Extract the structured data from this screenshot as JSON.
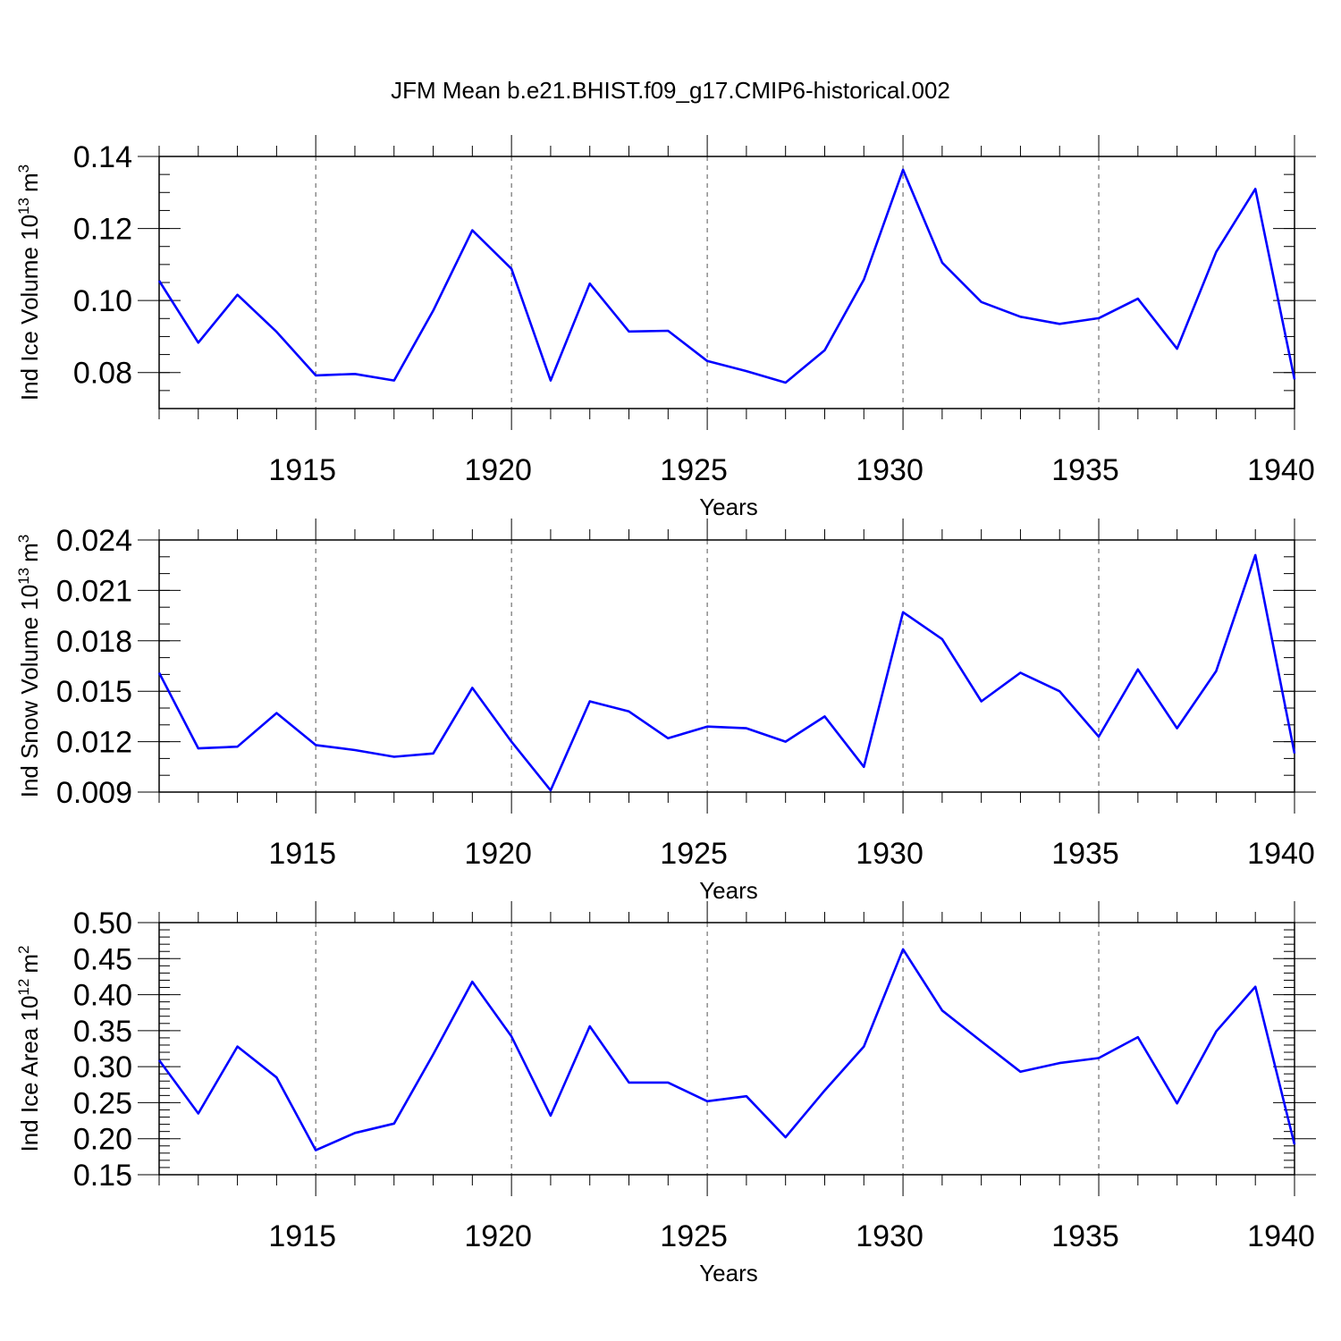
{
  "chart_data": {
    "type": "line",
    "title": "JFM Mean b.e21.BHIST.f09_g17.CMIP6-historical.002",
    "series_color": "#0000ff",
    "panels": [
      {
        "id": "ice-volume",
        "ylabel_main": "Ind Ice Volume 10",
        "ylabel_exp": "13",
        "ylabel_unit": "m",
        "ylabel_unit_exp": "3",
        "xlabel": "Years",
        "xlim": [
          1911,
          1940
        ],
        "ylim": [
          0.07,
          0.14
        ],
        "yticks": [
          0.08,
          0.1,
          0.12,
          0.14
        ],
        "ytick_labels": [
          "0.08",
          "0.10",
          "0.12",
          "0.14"
        ],
        "yminor_step": 0.005,
        "xticks": [
          1915,
          1920,
          1925,
          1930,
          1935,
          1940
        ],
        "xtick_labels": [
          "1915",
          "1920",
          "1925",
          "1930",
          "1935",
          "1940"
        ],
        "x": [
          1911,
          1912,
          1913,
          1914,
          1915,
          1916,
          1917,
          1918,
          1919,
          1920,
          1921,
          1922,
          1923,
          1924,
          1925,
          1926,
          1927,
          1928,
          1929,
          1930,
          1931,
          1932,
          1933,
          1934,
          1935,
          1936,
          1937,
          1938,
          1939,
          1940
        ],
        "values": [
          0.1055,
          0.0883,
          0.1016,
          0.0913,
          0.0792,
          0.0796,
          0.0778,
          0.0972,
          0.1195,
          0.1088,
          0.0778,
          0.1047,
          0.0914,
          0.0916,
          0.0832,
          0.0804,
          0.0772,
          0.0862,
          0.1058,
          0.1363,
          0.1105,
          0.0996,
          0.0955,
          0.0935,
          0.0951,
          0.1005,
          0.0866,
          0.1135,
          0.131,
          0.0781
        ]
      },
      {
        "id": "snow-volume",
        "ylabel_main": "Ind Snow Volume 10",
        "ylabel_exp": "13",
        "ylabel_unit": "m",
        "ylabel_unit_exp": "3",
        "xlabel": "Years",
        "xlim": [
          1911,
          1940
        ],
        "ylim": [
          0.009,
          0.024
        ],
        "yticks": [
          0.009,
          0.012,
          0.015,
          0.018,
          0.021,
          0.024
        ],
        "ytick_labels": [
          "0.009",
          "0.012",
          "0.015",
          "0.018",
          "0.021",
          "0.024"
        ],
        "yminor_step": 0.001,
        "xticks": [
          1915,
          1920,
          1925,
          1930,
          1935,
          1940
        ],
        "xtick_labels": [
          "1915",
          "1920",
          "1925",
          "1930",
          "1935",
          "1940"
        ],
        "x": [
          1911,
          1912,
          1913,
          1914,
          1915,
          1916,
          1917,
          1918,
          1919,
          1920,
          1921,
          1922,
          1923,
          1924,
          1925,
          1926,
          1927,
          1928,
          1929,
          1930,
          1931,
          1932,
          1933,
          1934,
          1935,
          1936,
          1937,
          1938,
          1939,
          1940
        ],
        "values": [
          0.0161,
          0.0116,
          0.0117,
          0.0137,
          0.0118,
          0.0115,
          0.0111,
          0.0113,
          0.0152,
          0.012,
          0.0091,
          0.0144,
          0.0138,
          0.0122,
          0.0129,
          0.0128,
          0.012,
          0.0135,
          0.0105,
          0.0197,
          0.0181,
          0.0144,
          0.0161,
          0.015,
          0.0123,
          0.0163,
          0.0128,
          0.0162,
          0.0231,
          0.0113
        ]
      },
      {
        "id": "ice-area",
        "ylabel_main": "Ind Ice Area 10",
        "ylabel_exp": "12",
        "ylabel_unit": "m",
        "ylabel_unit_exp": "2",
        "xlabel": "Years",
        "xlim": [
          1911,
          1940
        ],
        "ylim": [
          0.15,
          0.5
        ],
        "yticks": [
          0.15,
          0.2,
          0.25,
          0.3,
          0.35,
          0.4,
          0.45,
          0.5
        ],
        "ytick_labels": [
          "0.15",
          "0.20",
          "0.25",
          "0.30",
          "0.35",
          "0.40",
          "0.45",
          "0.50"
        ],
        "yminor_step": 0.01,
        "xticks": [
          1915,
          1920,
          1925,
          1930,
          1935,
          1940
        ],
        "xtick_labels": [
          "1915",
          "1920",
          "1925",
          "1930",
          "1935",
          "1940"
        ],
        "x": [
          1911,
          1912,
          1913,
          1914,
          1915,
          1916,
          1917,
          1918,
          1919,
          1920,
          1921,
          1922,
          1923,
          1924,
          1925,
          1926,
          1927,
          1928,
          1929,
          1930,
          1931,
          1932,
          1933,
          1934,
          1935,
          1936,
          1937,
          1938,
          1939,
          1940
        ],
        "values": [
          0.309,
          0.235,
          0.328,
          0.285,
          0.184,
          0.208,
          0.221,
          0.317,
          0.418,
          0.342,
          0.232,
          0.356,
          0.278,
          0.278,
          0.252,
          0.259,
          0.202,
          0.267,
          0.328,
          0.463,
          0.378,
          0.335,
          0.293,
          0.305,
          0.312,
          0.341,
          0.249,
          0.349,
          0.411,
          0.192
        ]
      }
    ]
  }
}
